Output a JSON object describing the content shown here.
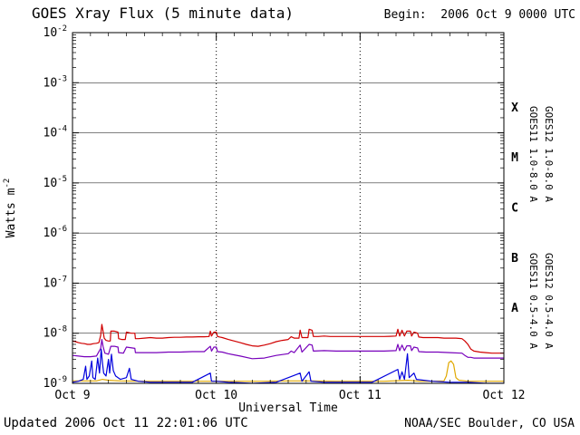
{
  "header": {
    "title": "GOES Xray Flux (5 minute data)",
    "begin_label": "Begin:  2006 Oct 9 0000 UTC"
  },
  "footer": {
    "updated": "Updated 2006 Oct 11 22:01:06 UTC",
    "source": "NOAA/SEC Boulder, CO USA"
  },
  "chart_data": {
    "type": "line",
    "title": "GOES Xray Flux (5 minute data)",
    "xlabel": "Universal Time",
    "ylabel_base": "Watts m",
    "ylabel_sup": "-2",
    "x_range_hours": [
      0,
      72
    ],
    "x_major_ticks": [
      {
        "hour": 0,
        "label": "Oct 9"
      },
      {
        "hour": 24,
        "label": "Oct 10"
      },
      {
        "hour": 48,
        "label": "Oct 11"
      },
      {
        "hour": 72,
        "label": "Oct 12"
      }
    ],
    "x_minor_tick_step_hours": 3,
    "y_exponent_range": [
      -9,
      -2
    ],
    "y_tick_exponents": [
      -2,
      -3,
      -4,
      -5,
      -6,
      -7,
      -8,
      -9
    ],
    "grid_decades": [
      -3,
      -4,
      -5,
      -6,
      -7,
      -8
    ],
    "day_boundary_hours": [
      24,
      48
    ],
    "flare_classes": [
      {
        "label": "X",
        "center_exponent": -3.5
      },
      {
        "label": "M",
        "center_exponent": -4.5
      },
      {
        "label": "C",
        "center_exponent": -5.5
      },
      {
        "label": "B",
        "center_exponent": -6.5
      },
      {
        "label": "A",
        "center_exponent": -7.5
      }
    ],
    "right_labels": [
      {
        "text": "GOES11 1.0-8.0 A",
        "color": "#7700bb",
        "col": 0,
        "row": 0
      },
      {
        "text": "GOES12 1.0-8.0 A",
        "color": "#d00000",
        "col": 1,
        "row": 0
      },
      {
        "text": "GOES11 0.5-4.0 A",
        "color": "#e0a800",
        "col": 0,
        "row": 1
      },
      {
        "text": "GOES12 0.5-4.0 A",
        "color": "#0000dd",
        "col": 1,
        "row": 1
      }
    ],
    "series": [
      {
        "name": "GOES11 0.5-4.0 A",
        "color": "#e0a800",
        "points": [
          [
            0,
            1.12e-09
          ],
          [
            4,
            1.12e-09
          ],
          [
            5,
            1.2e-09
          ],
          [
            6,
            1.15e-09
          ],
          [
            8,
            1.12e-09
          ],
          [
            12,
            1.1e-09
          ],
          [
            16,
            1.1e-09
          ],
          [
            20,
            1.1e-09
          ],
          [
            24,
            1.1e-09
          ],
          [
            28,
            1.1e-09
          ],
          [
            32,
            1.1e-09
          ],
          [
            36,
            1.12e-09
          ],
          [
            40,
            1.12e-09
          ],
          [
            44,
            1.1e-09
          ],
          [
            48,
            1.1e-09
          ],
          [
            52,
            1.1e-09
          ],
          [
            56,
            1.15e-09
          ],
          [
            58,
            1.1e-09
          ],
          [
            60,
            1.1e-09
          ],
          [
            62,
            1.12e-09
          ],
          [
            62.4,
            1.4e-09
          ],
          [
            62.8,
            2.6e-09
          ],
          [
            63.2,
            2.8e-09
          ],
          [
            63.6,
            2.4e-09
          ],
          [
            64.0,
            1.3e-09
          ],
          [
            64.5,
            1.15e-09
          ],
          [
            66,
            1.1e-09
          ],
          [
            68,
            1.1e-09
          ],
          [
            70,
            1.1e-09
          ],
          [
            72,
            1.1e-09
          ]
        ]
      },
      {
        "name": "GOES12 0.5-4.0 A",
        "color": "#0000dd",
        "points": [
          [
            0,
            1.05e-09
          ],
          [
            1,
            1.1e-09
          ],
          [
            1.8,
            1.2e-09
          ],
          [
            2.2,
            2.2e-09
          ],
          [
            2.4,
            1.2e-09
          ],
          [
            2.8,
            1.4e-09
          ],
          [
            3.2,
            2.8e-09
          ],
          [
            3.4,
            1.3e-09
          ],
          [
            3.8,
            1.2e-09
          ],
          [
            4.2,
            3.2e-09
          ],
          [
            4.5,
            1.6e-09
          ],
          [
            4.8,
            4.8e-09
          ],
          [
            5.0,
            2.5e-09
          ],
          [
            5.2,
            1.6e-09
          ],
          [
            5.6,
            1.4e-09
          ],
          [
            6.0,
            3e-09
          ],
          [
            6.2,
            1.6e-09
          ],
          [
            6.5,
            3.8e-09
          ],
          [
            6.8,
            1.8e-09
          ],
          [
            7.2,
            1.4e-09
          ],
          [
            8,
            1.2e-09
          ],
          [
            9,
            1.3e-09
          ],
          [
            9.5,
            2e-09
          ],
          [
            9.8,
            1.2e-09
          ],
          [
            11,
            1.1e-09
          ],
          [
            13,
            1.05e-09
          ],
          [
            16,
            1.05e-09
          ],
          [
            20,
            1.05e-09
          ],
          [
            23.0,
            1.6e-09
          ],
          [
            23.2,
            1.1e-09
          ],
          [
            24,
            1.1e-09
          ],
          [
            26,
            1.05e-09
          ],
          [
            30,
            1e-09
          ],
          [
            34,
            1.05e-09
          ],
          [
            38.0,
            1.6e-09
          ],
          [
            38.3,
            1.1e-09
          ],
          [
            39.5,
            1.7e-09
          ],
          [
            39.8,
            1.1e-09
          ],
          [
            42,
            1.05e-09
          ],
          [
            46,
            1.05e-09
          ],
          [
            50,
            1.05e-09
          ],
          [
            54.3,
            1.9e-09
          ],
          [
            54.6,
            1.2e-09
          ],
          [
            55.0,
            1.7e-09
          ],
          [
            55.4,
            1.2e-09
          ],
          [
            55.9,
            3.9e-09
          ],
          [
            56.2,
            1.3e-09
          ],
          [
            57.0,
            1.6e-09
          ],
          [
            57.4,
            1.2e-09
          ],
          [
            60,
            1.1e-09
          ],
          [
            63,
            1.05e-09
          ],
          [
            66,
            1.05e-09
          ],
          [
            69,
            1e-09
          ],
          [
            72,
            1e-09
          ]
        ]
      },
      {
        "name": "GOES11 1.0-8.0 A",
        "color": "#7700bb",
        "points": [
          [
            0,
            3.6e-09
          ],
          [
            1,
            3.5e-09
          ],
          [
            2,
            3.4e-09
          ],
          [
            3,
            3.4e-09
          ],
          [
            4,
            3.5e-09
          ],
          [
            4.7,
            5e-09
          ],
          [
            4.9,
            7.5e-09
          ],
          [
            5.1,
            5.5e-09
          ],
          [
            5.4,
            4e-09
          ],
          [
            6.0,
            3.8e-09
          ],
          [
            6.4,
            5.5e-09
          ],
          [
            7.0,
            5.5e-09
          ],
          [
            7.6,
            5.3e-09
          ],
          [
            7.7,
            4.1e-09
          ],
          [
            8.5,
            4e-09
          ],
          [
            9.0,
            5.3e-09
          ],
          [
            10.4,
            5e-09
          ],
          [
            10.5,
            4.1e-09
          ],
          [
            12,
            4.1e-09
          ],
          [
            14,
            4.1e-09
          ],
          [
            16,
            4.2e-09
          ],
          [
            18,
            4.2e-09
          ],
          [
            20,
            4.3e-09
          ],
          [
            22,
            4.3e-09
          ],
          [
            23.0,
            5.5e-09
          ],
          [
            23.2,
            4.4e-09
          ],
          [
            23.6,
            5.3e-09
          ],
          [
            24.0,
            5.3e-09
          ],
          [
            24.2,
            4.3e-09
          ],
          [
            25,
            4.2e-09
          ],
          [
            26,
            3.9e-09
          ],
          [
            28,
            3.5e-09
          ],
          [
            30,
            3.1e-09
          ],
          [
            32,
            3.2e-09
          ],
          [
            34,
            3.6e-09
          ],
          [
            36,
            3.9e-09
          ],
          [
            36.5,
            4.4e-09
          ],
          [
            37,
            4.1e-09
          ],
          [
            38.0,
            5.8e-09
          ],
          [
            38.3,
            4.2e-09
          ],
          [
            39.5,
            6e-09
          ],
          [
            40.0,
            5.8e-09
          ],
          [
            40.2,
            4.4e-09
          ],
          [
            42,
            4.5e-09
          ],
          [
            44,
            4.4e-09
          ],
          [
            46,
            4.4e-09
          ],
          [
            48,
            4.4e-09
          ],
          [
            50,
            4.4e-09
          ],
          [
            52,
            4.4e-09
          ],
          [
            54,
            4.5e-09
          ],
          [
            54.3,
            6e-09
          ],
          [
            54.6,
            4.5e-09
          ],
          [
            55.0,
            5.8e-09
          ],
          [
            55.4,
            4.5e-09
          ],
          [
            55.8,
            5.6e-09
          ],
          [
            56.4,
            5.6e-09
          ],
          [
            56.6,
            4.5e-09
          ],
          [
            57.0,
            5.3e-09
          ],
          [
            57.6,
            5.1e-09
          ],
          [
            57.8,
            4.3e-09
          ],
          [
            59,
            4.2e-09
          ],
          [
            61,
            4.2e-09
          ],
          [
            63,
            4.1e-09
          ],
          [
            65,
            4e-09
          ],
          [
            65.5,
            3.6e-09
          ],
          [
            66,
            3.3e-09
          ],
          [
            66.5,
            3.3e-09
          ],
          [
            67,
            3.2e-09
          ],
          [
            68,
            3.2e-09
          ],
          [
            70,
            3.2e-09
          ],
          [
            72,
            3.2e-09
          ]
        ]
      },
      {
        "name": "GOES12 1.0-8.0 A",
        "color": "#d00000",
        "points": [
          [
            0,
            7e-09
          ],
          [
            0.5,
            6.8e-09
          ],
          [
            1,
            6.5e-09
          ],
          [
            1.5,
            6.3e-09
          ],
          [
            2,
            6.2e-09
          ],
          [
            2.5,
            6e-09
          ],
          [
            3,
            6e-09
          ],
          [
            3.5,
            6.2e-09
          ],
          [
            4,
            6.3e-09
          ],
          [
            4.4,
            6.5e-09
          ],
          [
            4.7,
            9e-09
          ],
          [
            4.9,
            1.5e-08
          ],
          [
            5.1,
            1.1e-08
          ],
          [
            5.3,
            8e-09
          ],
          [
            5.6,
            7.2e-09
          ],
          [
            6.0,
            7e-09
          ],
          [
            6.3,
            7e-09
          ],
          [
            6.4,
            1.1e-08
          ],
          [
            7.0,
            1.1e-08
          ],
          [
            7.6,
            1.05e-08
          ],
          [
            7.7,
            7.8e-09
          ],
          [
            8.2,
            7.5e-09
          ],
          [
            8.8,
            7.5e-09
          ],
          [
            9.0,
            1.05e-08
          ],
          [
            9.8,
            1e-08
          ],
          [
            10.4,
            1e-08
          ],
          [
            10.5,
            7.8e-09
          ],
          [
            11,
            7.8e-09
          ],
          [
            12,
            8e-09
          ],
          [
            13,
            8.2e-09
          ],
          [
            14,
            8e-09
          ],
          [
            15,
            8e-09
          ],
          [
            16,
            8.2e-09
          ],
          [
            17,
            8.3e-09
          ],
          [
            18,
            8.3e-09
          ],
          [
            19,
            8.4e-09
          ],
          [
            20,
            8.4e-09
          ],
          [
            21,
            8.5e-09
          ],
          [
            22,
            8.5e-09
          ],
          [
            22.8,
            8.6e-09
          ],
          [
            23.0,
            1.1e-08
          ],
          [
            23.2,
            8.8e-09
          ],
          [
            23.6,
            1.05e-08
          ],
          [
            24.0,
            1.05e-08
          ],
          [
            24.2,
            8.6e-09
          ],
          [
            24.6,
            8.4e-09
          ],
          [
            25,
            8.2e-09
          ],
          [
            26,
            7.5e-09
          ],
          [
            27,
            7e-09
          ],
          [
            28,
            6.5e-09
          ],
          [
            29,
            6e-09
          ],
          [
            30,
            5.6e-09
          ],
          [
            31,
            5.5e-09
          ],
          [
            32,
            5.8e-09
          ],
          [
            33,
            6.2e-09
          ],
          [
            34,
            6.8e-09
          ],
          [
            35,
            7.2e-09
          ],
          [
            36,
            7.5e-09
          ],
          [
            36.5,
            8.5e-09
          ],
          [
            37,
            8e-09
          ],
          [
            37.8,
            8e-09
          ],
          [
            38.0,
            1.15e-08
          ],
          [
            38.3,
            8.2e-09
          ],
          [
            39.3,
            8.2e-09
          ],
          [
            39.5,
            1.2e-08
          ],
          [
            40.0,
            1.15e-08
          ],
          [
            40.2,
            8.6e-09
          ],
          [
            41,
            8.6e-09
          ],
          [
            42,
            8.8e-09
          ],
          [
            43,
            8.6e-09
          ],
          [
            44,
            8.6e-09
          ],
          [
            45,
            8.6e-09
          ],
          [
            46,
            8.6e-09
          ],
          [
            47,
            8.6e-09
          ],
          [
            48,
            8.6e-09
          ],
          [
            49,
            8.6e-09
          ],
          [
            50,
            8.6e-09
          ],
          [
            51,
            8.6e-09
          ],
          [
            52,
            8.6e-09
          ],
          [
            53,
            8.7e-09
          ],
          [
            54,
            8.8e-09
          ],
          [
            54.3,
            1.2e-08
          ],
          [
            54.6,
            8.8e-09
          ],
          [
            55.0,
            1.15e-08
          ],
          [
            55.4,
            8.8e-09
          ],
          [
            55.8,
            1.1e-08
          ],
          [
            56.4,
            1.1e-08
          ],
          [
            56.6,
            8.8e-09
          ],
          [
            57.0,
            1.05e-08
          ],
          [
            57.6,
            1e-08
          ],
          [
            57.8,
            8.4e-09
          ],
          [
            58.5,
            8.2e-09
          ],
          [
            59,
            8.2e-09
          ],
          [
            60,
            8.2e-09
          ],
          [
            61,
            8.2e-09
          ],
          [
            62,
            8e-09
          ],
          [
            63,
            8e-09
          ],
          [
            64,
            8e-09
          ],
          [
            65,
            7.8e-09
          ],
          [
            65.5,
            7e-09
          ],
          [
            66,
            6e-09
          ],
          [
            66.5,
            4.8e-09
          ],
          [
            67,
            4.4e-09
          ],
          [
            68,
            4.2e-09
          ],
          [
            69,
            4.1e-09
          ],
          [
            70,
            4e-09
          ],
          [
            71,
            4e-09
          ],
          [
            72,
            4e-09
          ]
        ]
      }
    ]
  }
}
